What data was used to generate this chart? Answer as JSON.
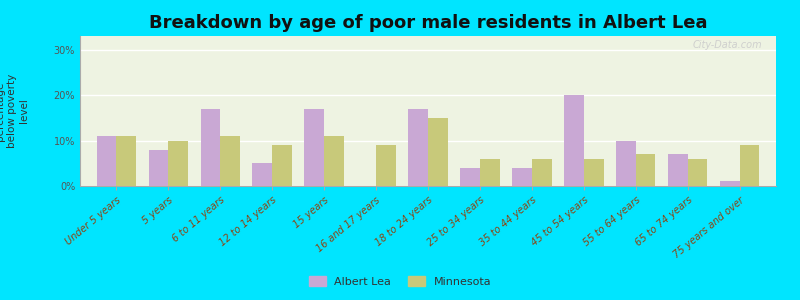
{
  "title": "Breakdown by age of poor male residents in Albert Lea",
  "ylabel": "percentage\nbelow poverty\nlevel",
  "categories": [
    "Under 5 years",
    "5 years",
    "6 to 11 years",
    "12 to 14 years",
    "15 years",
    "16 and 17 years",
    "18 to 24 years",
    "25 to 34 years",
    "35 to 44 years",
    "45 to 54 years",
    "55 to 64 years",
    "65 to 74 years",
    "75 years and over"
  ],
  "albert_lea": [
    11,
    8,
    17,
    5,
    17,
    0,
    17,
    4,
    4,
    20,
    10,
    7,
    1
  ],
  "minnesota": [
    11,
    10,
    11,
    9,
    11,
    9,
    15,
    6,
    6,
    6,
    7,
    6,
    9
  ],
  "albert_lea_color": "#c9a8d4",
  "minnesota_color": "#c8c97a",
  "plot_bg_color": "#eef3e2",
  "outer_background": "#00e5ff",
  "yticks": [
    0,
    10,
    20,
    30
  ],
  "ylim": [
    0,
    33
  ],
  "bar_width": 0.38,
  "title_fontsize": 13,
  "axis_label_fontsize": 7.5,
  "tick_fontsize": 7,
  "legend_labels": [
    "Albert Lea",
    "Minnesota"
  ],
  "watermark": "City-Data.com"
}
